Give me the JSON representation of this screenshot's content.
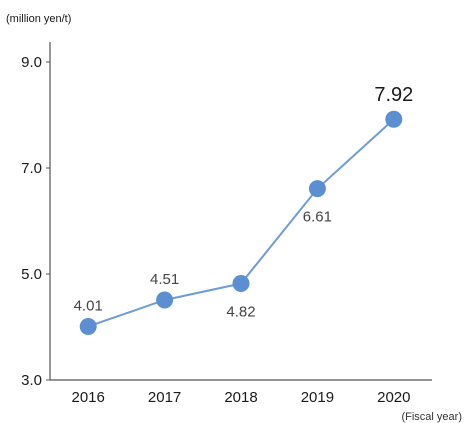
{
  "chart_data": {
    "type": "line",
    "title": "",
    "ylabel": "(million yen/t)",
    "xlabel": "(Fiscal year)",
    "categories": [
      "2016",
      "2017",
      "2018",
      "2019",
      "2020"
    ],
    "series": [
      {
        "values": [
          4.01,
          4.51,
          4.82,
          6.61,
          7.92
        ],
        "color": "#5b8fd1",
        "line_color": "#6f9bd8"
      }
    ],
    "data_labels": [
      "4.01",
      "4.51",
      "4.82",
      "6.61",
      "7.92"
    ],
    "ylim": [
      3.0,
      9.0
    ],
    "yticks": [
      3.0,
      5.0,
      7.0,
      9.0
    ],
    "ytick_labels": [
      "3.0",
      "5.0",
      "7.0",
      "9.0"
    ],
    "grid": false,
    "axis_color": "#555555"
  }
}
